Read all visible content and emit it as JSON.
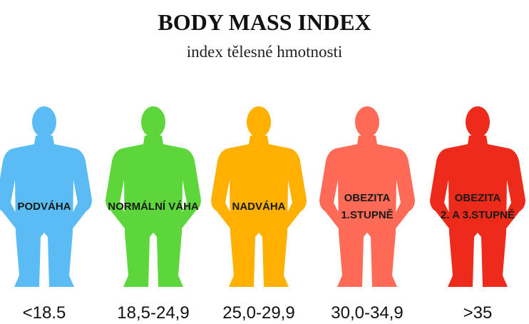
{
  "header": {
    "title": "BODY MASS INDEX",
    "subtitle": "index tělesné hmotnosti"
  },
  "items": [
    {
      "label": [
        "PODVÁHA"
      ],
      "range": "<18.5",
      "color": "#5bbcf5"
    },
    {
      "label": [
        "NORMÁLNÍ VÁHA"
      ],
      "range": "18,5-24,9",
      "color": "#5cd63a"
    },
    {
      "label": [
        "NADVÁHA"
      ],
      "range": "25,0-29,9",
      "color": "#ffb000"
    },
    {
      "label": [
        "OBEZITA",
        "1.STUPNĚ"
      ],
      "range": "30,0-34,9",
      "color": "#ff6b57"
    },
    {
      "label": [
        "OBEZITA",
        "2. A 3.STUPNĚ"
      ],
      "range": ">35",
      "color": "#ee2a1a"
    }
  ]
}
